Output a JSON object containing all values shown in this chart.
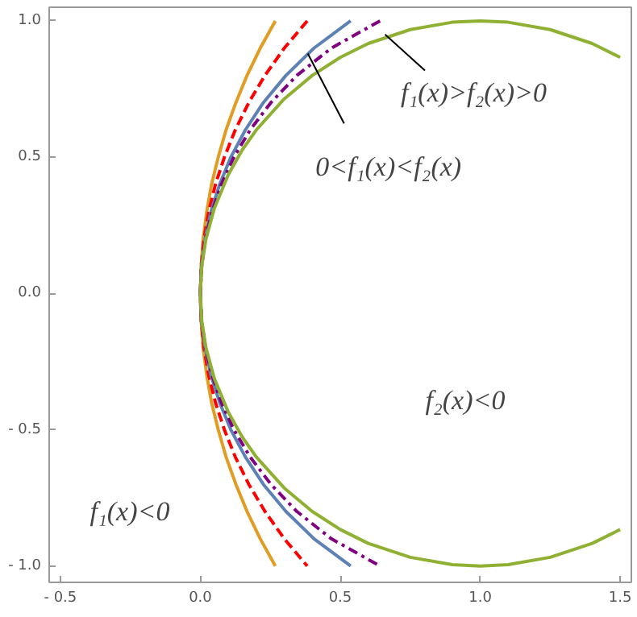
{
  "chart_data": {
    "type": "line",
    "xlim": [
      -0.54,
      1.54
    ],
    "ylim": [
      -1.06,
      1.05
    ],
    "xticks": [
      {
        "value": -0.5,
        "label": "- 0.5"
      },
      {
        "value": 0,
        "label": "0.0"
      },
      {
        "value": 0.5,
        "label": "0.5"
      },
      {
        "value": 1,
        "label": "1.0"
      },
      {
        "value": 1.5,
        "label": "1.5"
      }
    ],
    "yticks": [
      {
        "value": -1,
        "label": "- 1.0"
      },
      {
        "value": -0.5,
        "label": "- 0.5"
      },
      {
        "value": 0,
        "label": "0.0"
      },
      {
        "value": 0.5,
        "label": "0.5"
      },
      {
        "value": 1,
        "label": "1.0"
      }
    ],
    "grid": false,
    "marker": "none",
    "series": [
      {
        "color": "#e19c24",
        "line_style": "solid",
        "x": [
          0.268,
          0.214,
          0.167,
          0.127,
          0.092,
          0.064,
          0.04,
          0.023,
          0.01,
          0.003,
          0,
          0.003,
          0.01,
          0.023,
          0.04,
          0.064,
          0.092,
          0.127,
          0.167,
          0.214,
          0.268
        ],
        "values": [
          1,
          0.9,
          0.8,
          0.7,
          0.6,
          0.5,
          0.4,
          0.3,
          0.2,
          0.1,
          0,
          -0.1,
          -0.2,
          -0.3,
          -0.4,
          -0.5,
          -0.6,
          -0.7,
          -0.8,
          -0.9,
          -1
        ]
      },
      {
        "color": "#ff0000",
        "line_style": "dashed",
        "x": [
          0.382,
          0.3,
          0.231,
          0.173,
          0.125,
          0.086,
          0.054,
          0.03,
          0.013,
          0.003,
          0,
          0.003,
          0.013,
          0.03,
          0.054,
          0.086,
          0.125,
          0.173,
          0.231,
          0.3,
          0.382
        ],
        "values": [
          1,
          0.9,
          0.8,
          0.7,
          0.6,
          0.5,
          0.4,
          0.3,
          0.2,
          0.1,
          0,
          -0.1,
          -0.2,
          -0.3,
          -0.4,
          -0.5,
          -0.6,
          -0.7,
          -0.8,
          -0.9,
          -1
        ]
      },
      {
        "color": "#5e81b5",
        "line_style": "solid",
        "x": [
          0.537,
          0.406,
          0.306,
          0.225,
          0.161,
          0.109,
          0.069,
          0.038,
          0.017,
          0.004,
          0,
          0.004,
          0.017,
          0.038,
          0.069,
          0.109,
          0.161,
          0.225,
          0.306,
          0.406,
          0.537
        ],
        "values": [
          1,
          0.9,
          0.8,
          0.7,
          0.6,
          0.5,
          0.4,
          0.3,
          0.2,
          0.1,
          0,
          -0.1,
          -0.2,
          -0.3,
          -0.4,
          -0.5,
          -0.6,
          -0.7,
          -0.8,
          -0.9,
          -1
        ]
      },
      {
        "color": "#800080",
        "line_style": "dashdot",
        "x": [
          0.642,
          0.468,
          0.345,
          0.252,
          0.178,
          0.12,
          0.075,
          0.042,
          0.018,
          0.005,
          0,
          0.005,
          0.018,
          0.042,
          0.075,
          0.12,
          0.178,
          0.252,
          0.345,
          0.468,
          0.642
        ],
        "values": [
          1,
          0.9,
          0.8,
          0.7,
          0.6,
          0.5,
          0.4,
          0.3,
          0.2,
          0.1,
          0,
          -0.1,
          -0.2,
          -0.3,
          -0.4,
          -0.5,
          -0.6,
          -0.7,
          -0.8,
          -0.9,
          -1
        ]
      },
      {
        "color": "#8fb032",
        "line_style": "solid",
        "x": [
          1.5,
          1.4,
          1.25,
          1.1,
          1,
          0.9,
          0.75,
          0.6,
          0.5,
          0.4,
          0.3,
          0.2,
          0.15,
          0.1,
          0.05,
          0.02,
          0.005,
          0,
          0.005,
          0.02,
          0.05,
          0.1,
          0.15,
          0.2,
          0.3,
          0.4,
          0.5,
          0.6,
          0.75,
          0.9,
          1,
          1.1,
          1.25,
          1.4,
          1.5
        ],
        "values": [
          0.866,
          0.917,
          0.968,
          0.995,
          1,
          0.995,
          0.968,
          0.917,
          0.866,
          0.8,
          0.714,
          0.6,
          0.527,
          0.436,
          0.312,
          0.199,
          0.1,
          0,
          -0.1,
          -0.199,
          -0.312,
          -0.436,
          -0.527,
          -0.6,
          -0.714,
          -0.8,
          -0.866,
          -0.917,
          -0.968,
          -0.995,
          -1,
          -0.995,
          -0.968,
          -0.917,
          -0.866
        ]
      }
    ],
    "annotations": [
      {
        "text": "f₁(x)>f₂(x)>0",
        "x": 0.66,
        "y": 0.95
      },
      {
        "text": "0<f₁(x)<f₂(x)",
        "x": 0.384,
        "y": 0.88
      },
      "f₂(x)<0",
      "f₁(x)<0"
    ]
  }
}
